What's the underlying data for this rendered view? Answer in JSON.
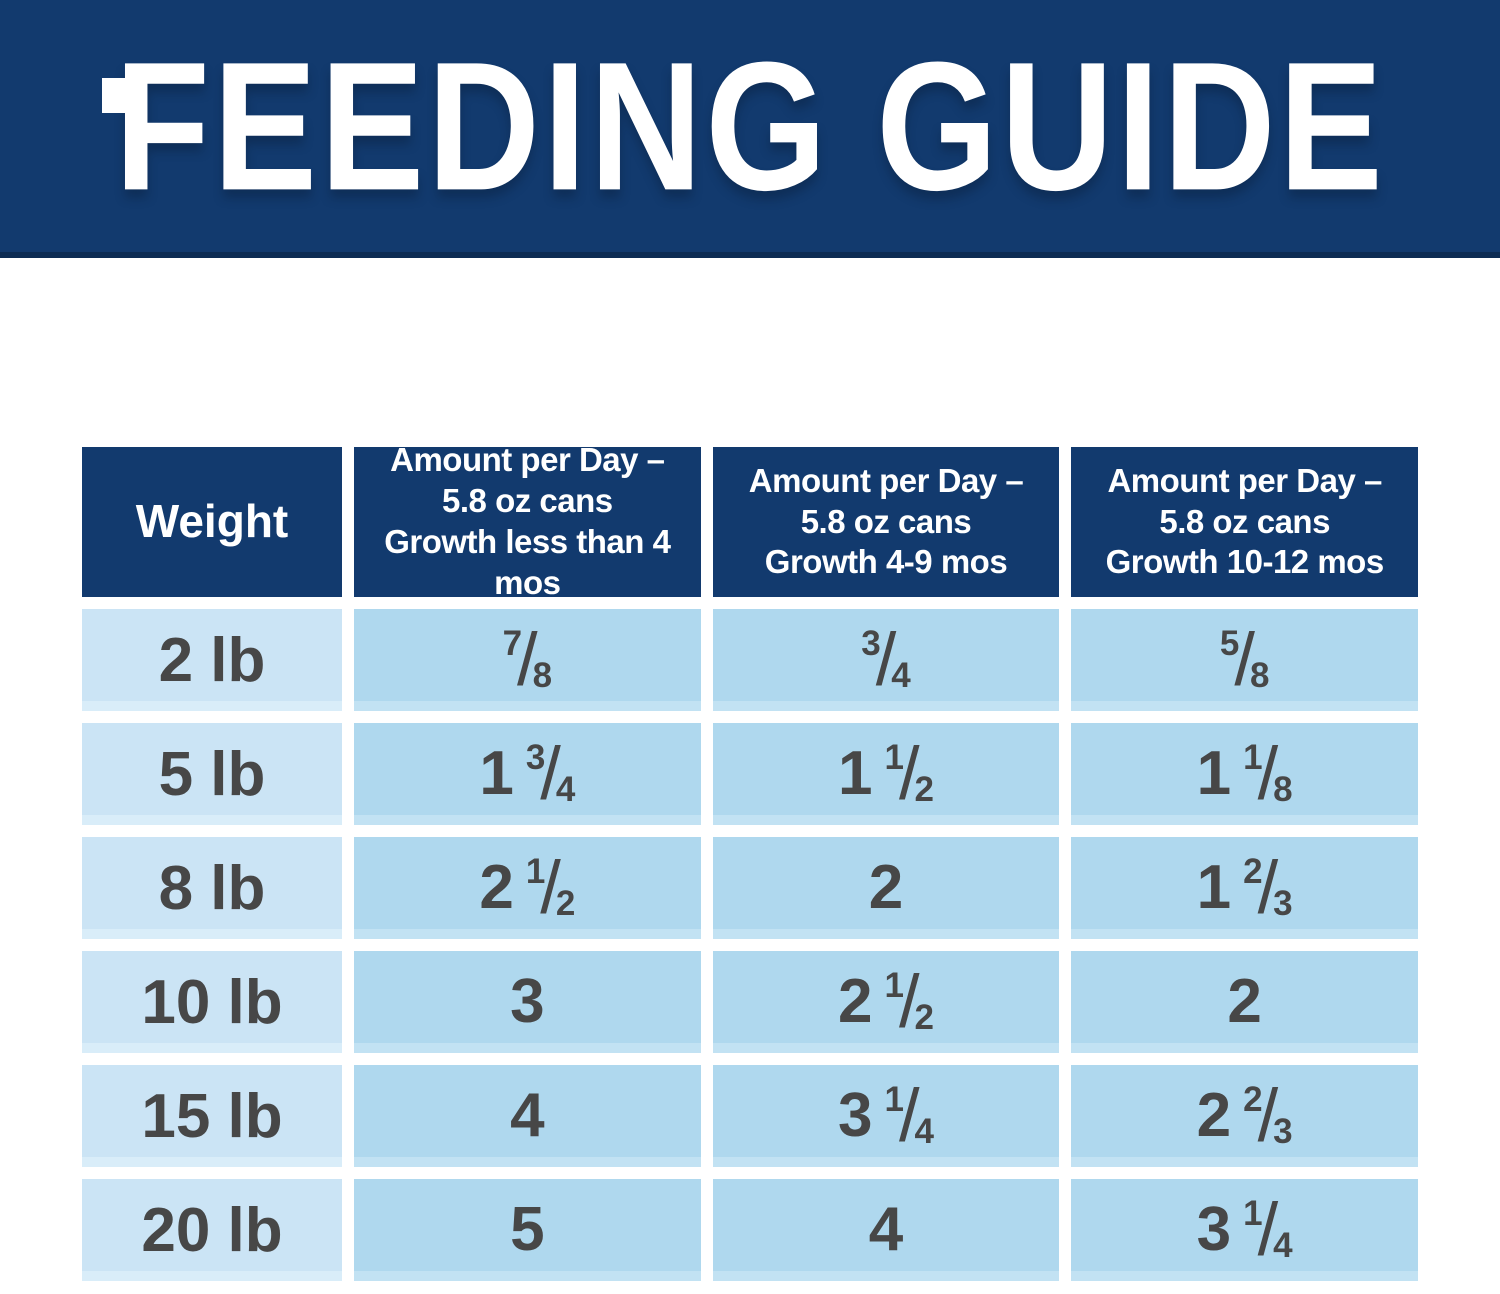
{
  "page": {
    "background": "#ffffff",
    "navy": "#123a6e",
    "navy_dark_edge": "#0d2c53",
    "weight_cell_blue": "#cbe4f5",
    "value_cell_blue": "#afd8ee",
    "cell_text_color": "#474747",
    "header_text_color": "#ffffff"
  },
  "banner": {
    "title": "FEEDING GUIDE"
  },
  "table": {
    "columns": [
      {
        "label": "Weight"
      },
      {
        "label": "Amount per Day –\n5.8 oz cans\nGrowth less than 4 mos"
      },
      {
        "label": "Amount per Day –\n5.8 oz cans\nGrowth 4-9 mos"
      },
      {
        "label": "Amount per Day –\n5.8 oz cans\nGrowth 10-12 mos"
      }
    ],
    "rows": [
      {
        "weight": "2 lb",
        "values": [
          "7/8",
          "3/4",
          "5/8"
        ]
      },
      {
        "weight": "5 lb",
        "values": [
          "1 3/4",
          "1 1/2",
          "1 1/8"
        ]
      },
      {
        "weight": "8 lb",
        "values": [
          "2 1/2",
          "2",
          "1 2/3"
        ]
      },
      {
        "weight": "10 lb",
        "values": [
          "3",
          "2 1/2",
          "2"
        ]
      },
      {
        "weight": "15 lb",
        "values": [
          "4",
          "3 1/4",
          "2 2/3"
        ]
      },
      {
        "weight": "20 lb",
        "values": [
          "5",
          "4",
          "3 1/4"
        ]
      }
    ]
  },
  "chart_data": {
    "type": "table",
    "title": "FEEDING GUIDE",
    "units": "5.8 oz cans per day",
    "columns": [
      "Weight",
      "Amount per Day – 5.8 oz cans Growth less than 4 mos",
      "Amount per Day – 5.8 oz cans Growth 4-9 mos",
      "Amount per Day – 5.8 oz cans Growth 10-12 mos"
    ],
    "rows": [
      [
        "2 lb",
        "7/8",
        "3/4",
        "5/8"
      ],
      [
        "5 lb",
        "1 3/4",
        "1 1/2",
        "1 1/8"
      ],
      [
        "8 lb",
        "2 1/2",
        "2",
        "1 2/3"
      ],
      [
        "10 lb",
        "3",
        "2 1/2",
        "2"
      ],
      [
        "15 lb",
        "4",
        "3 1/4",
        "2 2/3"
      ],
      [
        "20 lb",
        "5",
        "4",
        "3 1/4"
      ]
    ],
    "rows_decimal": [
      [
        "2 lb",
        0.875,
        0.75,
        0.625
      ],
      [
        "5 lb",
        1.75,
        1.5,
        1.125
      ],
      [
        "8 lb",
        2.5,
        2,
        1.667
      ],
      [
        "10 lb",
        3,
        2.5,
        2
      ],
      [
        "15 lb",
        4,
        3.25,
        2.667
      ],
      [
        "20 lb",
        5,
        4,
        3.25
      ]
    ]
  }
}
